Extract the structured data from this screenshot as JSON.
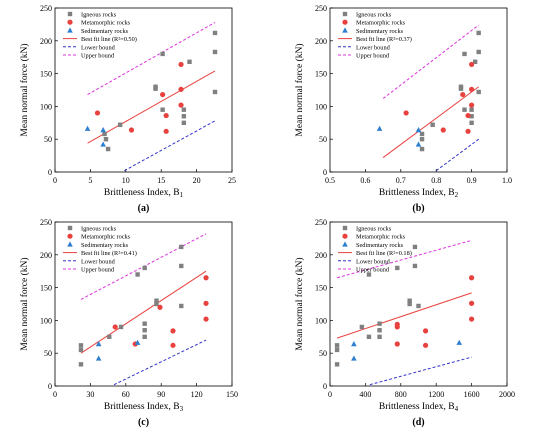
{
  "colors": {
    "igneous": "#808080",
    "metamorphic": "#e8423f",
    "sedimentary": "#2f7fd0",
    "fit": "#e8423f",
    "lower": "#3333cc",
    "upper": "#dd33dd"
  },
  "chart_data": [
    {
      "type": "scatter",
      "panel_label": "(a)",
      "xlabel": "Brittleness Index, B",
      "xlabel_sub": "1",
      "ylabel": "Mean normal force (kN)",
      "xlim": [
        0,
        25
      ],
      "ylim": [
        0,
        250
      ],
      "xticks": [
        "0",
        "5",
        "10",
        "15",
        "20",
        "25"
      ],
      "yticks": [
        "0",
        "50",
        "100",
        "150",
        "200",
        "250"
      ],
      "legend": [
        "Igneous rocks",
        "Metamorphic rocks",
        "Sedimentary rocks",
        "Best fit line (R²=0.50)",
        "Lower bound",
        "Upper bound"
      ],
      "legend_position": "top-left",
      "series": [
        {
          "name": "Igneous rocks",
          "marker": "square",
          "points": [
            [
              7,
              58
            ],
            [
              7.2,
              50
            ],
            [
              7.5,
              35
            ],
            [
              9.2,
              72
            ],
            [
              14.2,
              127
            ],
            [
              14.2,
              130
            ],
            [
              15.2,
              180
            ],
            [
              15.2,
              95
            ],
            [
              18.2,
              95
            ],
            [
              18.2,
              85
            ],
            [
              18.2,
              75
            ],
            [
              19,
              168
            ],
            [
              22.6,
              212
            ],
            [
              22.6,
              183
            ],
            [
              22.6,
              122
            ]
          ]
        },
        {
          "name": "Metamorphic rocks",
          "marker": "circle",
          "points": [
            [
              6,
              90
            ],
            [
              10.8,
              64
            ],
            [
              15.2,
              118
            ],
            [
              15.7,
              86
            ],
            [
              15.7,
              62
            ],
            [
              17.8,
              102
            ],
            [
              17.8,
              164
            ],
            [
              17.8,
              126
            ]
          ]
        },
        {
          "name": "Sedimentary rocks",
          "marker": "triangle",
          "points": [
            [
              4.6,
              66
            ],
            [
              6.8,
              64
            ],
            [
              6.8,
              42
            ]
          ]
        },
        {
          "name": "Best fit line (R²=0.50)",
          "line": [
            [
              4.6,
              44
            ],
            [
              22.6,
              154
            ]
          ]
        },
        {
          "name": "Lower bound",
          "line": [
            [
              9.8,
              2
            ],
            [
              22.6,
              78
            ]
          ]
        },
        {
          "name": "Upper bound",
          "line": [
            [
              4.6,
              118
            ],
            [
              22.6,
              228
            ]
          ]
        }
      ]
    },
    {
      "type": "scatter",
      "panel_label": "(b)",
      "xlabel": "Brittleness Index, B",
      "xlabel_sub": "2",
      "ylabel": "Mean normal force (kN)",
      "xlim": [
        0.5,
        1.0
      ],
      "ylim": [
        0,
        250
      ],
      "xticks": [
        "0.5",
        "0.6",
        "0.7",
        "0.8",
        "0.9",
        "1.0"
      ],
      "yticks": [
        "0",
        "50",
        "100",
        "150",
        "200",
        "250"
      ],
      "legend": [
        "Igneous rocks",
        "Metamorphic rocks",
        "Sedimentary rocks",
        "Best fit line (R²=0.37)",
        "Lower bound",
        "Upper bound"
      ],
      "legend_position": "top-left",
      "series": [
        {
          "name": "Igneous rocks",
          "marker": "square",
          "points": [
            [
              0.76,
              58
            ],
            [
              0.76,
              50
            ],
            [
              0.76,
              35
            ],
            [
              0.79,
              72
            ],
            [
              0.87,
              127
            ],
            [
              0.87,
              130
            ],
            [
              0.88,
              180
            ],
            [
              0.88,
              95
            ],
            [
              0.9,
              95
            ],
            [
              0.9,
              85
            ],
            [
              0.9,
              75
            ],
            [
              0.91,
              168
            ],
            [
              0.92,
              212
            ],
            [
              0.92,
              183
            ],
            [
              0.92,
              122
            ]
          ]
        },
        {
          "name": "Metamorphic rocks",
          "marker": "circle",
          "points": [
            [
              0.715,
              90
            ],
            [
              0.82,
              64
            ],
            [
              0.875,
              118
            ],
            [
              0.89,
              86
            ],
            [
              0.89,
              62
            ],
            [
              0.9,
              102
            ],
            [
              0.9,
              164
            ],
            [
              0.9,
              126
            ]
          ]
        },
        {
          "name": "Sedimentary rocks",
          "marker": "triangle",
          "points": [
            [
              0.64,
              66
            ],
            [
              0.75,
              64
            ],
            [
              0.75,
              42
            ]
          ]
        },
        {
          "name": "Best fit line (R²=0.37)",
          "line": [
            [
              0.65,
              22
            ],
            [
              0.92,
              130
            ]
          ]
        },
        {
          "name": "Lower bound",
          "line": [
            [
              0.8,
              2
            ],
            [
              0.92,
              50
            ]
          ]
        },
        {
          "name": "Upper bound",
          "line": [
            [
              0.65,
              112
            ],
            [
              0.92,
              224
            ]
          ]
        }
      ]
    },
    {
      "type": "scatter",
      "panel_label": "(c)",
      "xlabel": "Brittleness Index, B",
      "xlabel_sub": "3",
      "ylabel": "Mean normal force (kN)",
      "xlim": [
        0,
        150
      ],
      "ylim": [
        0,
        250
      ],
      "xticks": [
        "0",
        "30",
        "60",
        "90",
        "120",
        "150"
      ],
      "yticks": [
        "0",
        "50",
        "100",
        "150",
        "200",
        "250"
      ],
      "legend": [
        "Igneous rocks",
        "Metamorphic rocks",
        "Sedimentary rocks",
        "Best fit line (R²=0.41)",
        "Lower bound",
        "Upper bound"
      ],
      "legend_position": "top-left",
      "series": [
        {
          "name": "Igneous rocks",
          "marker": "square",
          "points": [
            [
              22,
              62
            ],
            [
              22,
              55
            ],
            [
              22,
              33
            ],
            [
              46,
              75
            ],
            [
              56,
              90
            ],
            [
              70,
              170
            ],
            [
              76,
              180
            ],
            [
              76,
              95
            ],
            [
              76,
              85
            ],
            [
              76,
              75
            ],
            [
              86,
              130
            ],
            [
              86,
              125
            ],
            [
              107,
              212
            ],
            [
              107,
              183
            ],
            [
              107,
              122
            ]
          ]
        },
        {
          "name": "Metamorphic rocks",
          "marker": "circle",
          "points": [
            [
              51,
              90
            ],
            [
              68,
              64
            ],
            [
              89,
              120
            ],
            [
              100,
              84
            ],
            [
              100,
              62
            ],
            [
              128,
              165
            ],
            [
              128,
              126
            ],
            [
              128,
              102
            ]
          ]
        },
        {
          "name": "Sedimentary rocks",
          "marker": "triangle",
          "points": [
            [
              37,
              64
            ],
            [
              37,
              42
            ],
            [
              70,
              66
            ]
          ]
        },
        {
          "name": "Best fit line (R²=0.41)",
          "line": [
            [
              22,
              50
            ],
            [
              128,
              175
            ]
          ]
        },
        {
          "name": "Lower bound",
          "line": [
            [
              50,
              2
            ],
            [
              128,
              70
            ]
          ]
        },
        {
          "name": "Upper bound",
          "line": [
            [
              22,
              132
            ],
            [
              128,
              232
            ]
          ]
        }
      ]
    },
    {
      "type": "scatter",
      "panel_label": "(d)",
      "xlabel": "Brittleness Index, B",
      "xlabel_sub": "4",
      "ylabel": "Mean normal force (kN)",
      "xlim": [
        0,
        2000
      ],
      "ylim": [
        0,
        250
      ],
      "xticks": [
        "0",
        "400",
        "800",
        "1200",
        "1600",
        "2000"
      ],
      "yticks": [
        "0",
        "50",
        "100",
        "150",
        "200",
        "250"
      ],
      "legend": [
        "Igneous rocks",
        "Metamorphic rocks",
        "Sedimentary rocks",
        "Best fit line (R²=0.18)",
        "Lower bound",
        "Upper bound"
      ],
      "legend_position": "top-left",
      "series": [
        {
          "name": "Igneous rocks",
          "marker": "square",
          "points": [
            [
              80,
              62
            ],
            [
              80,
              55
            ],
            [
              80,
              33
            ],
            [
              360,
              90
            ],
            [
              440,
              170
            ],
            [
              440,
              75
            ],
            [
              560,
              95
            ],
            [
              560,
              85
            ],
            [
              560,
              75
            ],
            [
              760,
              180
            ],
            [
              900,
              130
            ],
            [
              900,
              125
            ],
            [
              960,
              212
            ],
            [
              960,
              183
            ],
            [
              1000,
              122
            ]
          ]
        },
        {
          "name": "Metamorphic rocks",
          "marker": "circle",
          "points": [
            [
              760,
              94
            ],
            [
              760,
              90
            ],
            [
              760,
              64
            ],
            [
              1080,
              84
            ],
            [
              1080,
              62
            ],
            [
              1600,
              165
            ],
            [
              1600,
              126
            ],
            [
              1600,
              102
            ]
          ]
        },
        {
          "name": "Sedimentary rocks",
          "marker": "triangle",
          "points": [
            [
              270,
              64
            ],
            [
              270,
              42
            ],
            [
              1460,
              66
            ]
          ]
        },
        {
          "name": "Best fit line (R²=0.18)",
          "line": [
            [
              80,
              73
            ],
            [
              1600,
              142
            ]
          ]
        },
        {
          "name": "Lower bound",
          "line": [
            [
              450,
              2
            ],
            [
              1600,
              44
            ]
          ]
        },
        {
          "name": "Upper bound",
          "line": [
            [
              80,
              165
            ],
            [
              1600,
              222
            ]
          ]
        }
      ]
    }
  ]
}
